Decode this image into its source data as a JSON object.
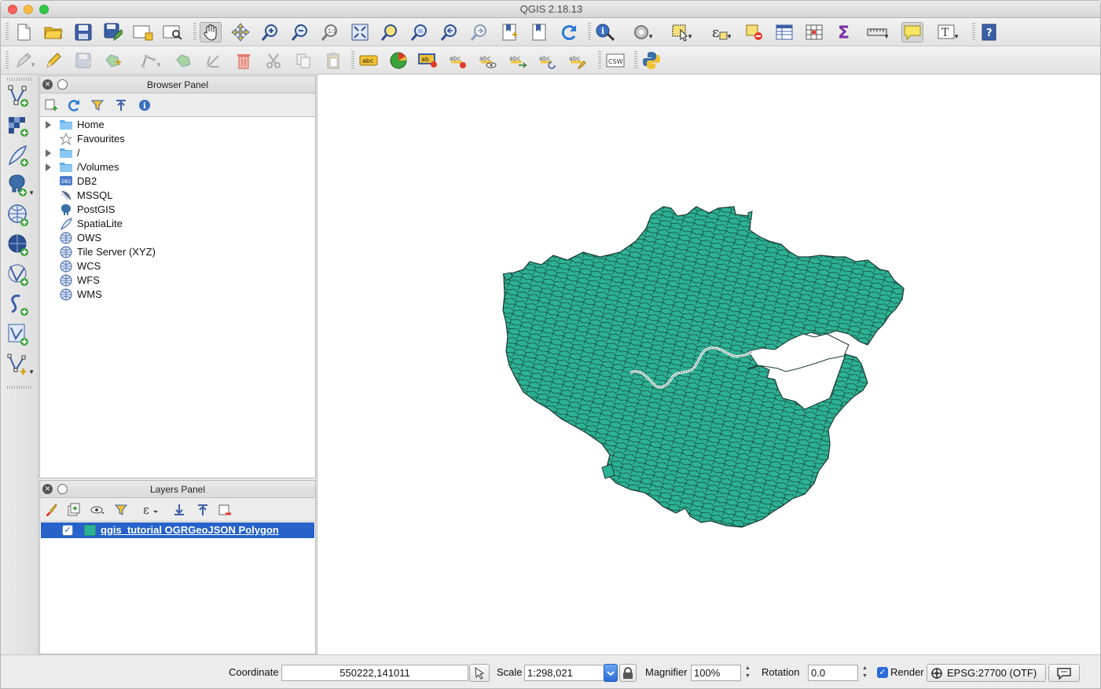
{
  "window": {
    "title": "QGIS 2.18.13"
  },
  "browser_panel": {
    "title": "Browser Panel",
    "items": [
      {
        "label": "Home",
        "icon": "folder-icon",
        "expandable": true
      },
      {
        "label": "Favourites",
        "icon": "star-icon",
        "expandable": false
      },
      {
        "label": "/",
        "icon": "folder-icon",
        "expandable": true
      },
      {
        "label": "/Volumes",
        "icon": "folder-icon",
        "expandable": true
      },
      {
        "label": "DB2",
        "icon": "db2-icon",
        "expandable": false
      },
      {
        "label": "MSSQL",
        "icon": "mssql-icon",
        "expandable": false
      },
      {
        "label": "PostGIS",
        "icon": "postgis-elephant-icon",
        "expandable": false
      },
      {
        "label": "SpatiaLite",
        "icon": "spatialite-feather-icon",
        "expandable": false
      },
      {
        "label": "OWS",
        "icon": "globe-icon",
        "expandable": false
      },
      {
        "label": "Tile Server (XYZ)",
        "icon": "globe-icon",
        "expandable": false
      },
      {
        "label": "WCS",
        "icon": "globe-icon",
        "expandable": false
      },
      {
        "label": "WFS",
        "icon": "globe-icon",
        "expandable": false
      },
      {
        "label": "WMS",
        "icon": "globe-icon",
        "expandable": false
      }
    ]
  },
  "layers_panel": {
    "title": "Layers Panel",
    "layers": [
      {
        "label": "qgis_tutorial OGRGeoJSON Polygon",
        "visible": true,
        "fill_color": "#2bb294",
        "selected": true
      }
    ]
  },
  "toolbar1_icons": [
    "new-project-icon",
    "open-project-icon",
    "save-project-icon",
    "save-as-icon",
    "new-print-composer-icon",
    "composer-manager-icon",
    "pan-icon",
    "pan-to-selection-icon",
    "zoom-in-icon",
    "zoom-out-icon",
    "zoom-actual-icon",
    "zoom-full-icon",
    "zoom-to-selection-icon",
    "zoom-to-layer-icon",
    "zoom-last-icon",
    "zoom-next-icon",
    "new-bookmark-icon",
    "show-bookmarks-icon",
    "refresh-icon",
    "identify-icon",
    "run-feature-action-icon",
    "select-features-icon",
    "select-by-expression-icon",
    "deselect-icon",
    "attribute-table-icon",
    "field-calculator-icon",
    "statistics-icon",
    "measure-icon",
    "map-tips-icon",
    "text-annotation-icon",
    "help-icon"
  ],
  "toolbar2_icons": [
    "edits-icon",
    "toggle-editing-icon",
    "save-edits-icon",
    "add-feature-icon",
    "node-tool-icon",
    "move-feature-icon",
    "digitize-icon",
    "delete-selected-icon",
    "cut-features-icon",
    "copy-features-icon",
    "paste-features-icon",
    "layer-labeling-icon",
    "layer-diagram-icon",
    "pin-labels-icon",
    "highlight-pinned-icon",
    "show-hide-labels-icon",
    "move-label-icon",
    "rotate-label-icon",
    "change-label-icon",
    "csw-icon",
    "python-console-icon"
  ],
  "left_toolbar_icons": [
    "add-vector-layer-icon",
    "add-raster-layer-icon",
    "add-spatialite-layer-icon",
    "add-postgis-layer-icon",
    "add-wms-layer-icon",
    "add-wfs-layer-icon",
    "add-wcs-layer-icon",
    "add-delimited-text-icon",
    "add-virtual-layer-icon",
    "new-shapefile-icon"
  ],
  "status": {
    "coordinate_label": "Coordinate",
    "coordinate_value": "550222,141011",
    "scale_label": "Scale",
    "scale_value": "1:298,021",
    "magnifier_label": "Magnifier",
    "magnifier_value": "100%",
    "rotation_label": "Rotation",
    "rotation_value": "0.0",
    "render_label": "Render",
    "render_checked": true,
    "crs_value": "EPSG:27700 (OTF)"
  },
  "map": {
    "layer_fill_color": "#2bb294",
    "stroke_color": "#1c3a32",
    "river_color": "#ffffff"
  }
}
